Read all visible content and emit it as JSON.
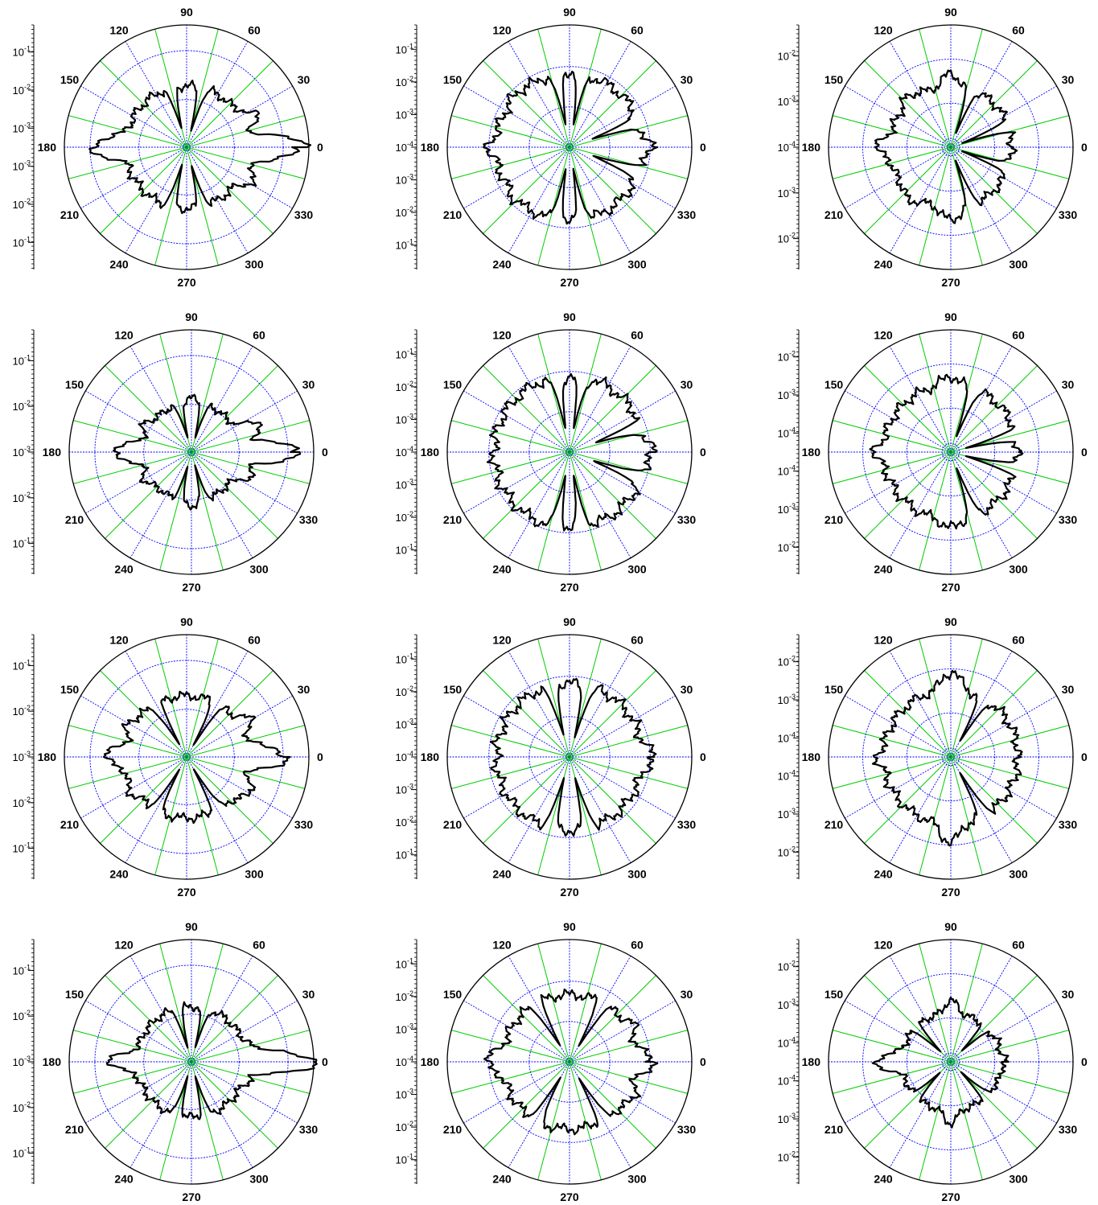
{
  "figure": {
    "angle_labels": [
      "0",
      "30",
      "60",
      "90",
      "120",
      "150",
      "180",
      "210",
      "240",
      "270",
      "300",
      "330"
    ]
  },
  "chart_data": [
    {
      "type": "polar",
      "id": "p-r1c1",
      "radial_scale": "log",
      "radial_ticks": [
        "10",
        "10",
        "10",
        "10",
        "10",
        "10",
        "10"
      ],
      "radial_exps": [
        "-1",
        "-2",
        "-3",
        "-3",
        "-2",
        "-1",
        ""
      ],
      "ring_fractions": [
        0.39,
        0.79
      ],
      "pattern": {
        "base": 0.5,
        "lobes": [
          [
            0,
            0.95
          ],
          [
            180,
            0.78
          ],
          [
            90,
            0.5
          ],
          [
            270,
            0.5
          ],
          [
            150,
            0.42
          ],
          [
            210,
            0.42
          ],
          [
            25,
            0.62
          ],
          [
            335,
            0.62
          ]
        ],
        "notches": [
          [
            75,
            0.15
          ],
          [
            105,
            0.15
          ],
          [
            255,
            0.15
          ],
          [
            285,
            0.15
          ]
        ]
      }
    },
    {
      "type": "polar",
      "id": "p-r1c2",
      "radial_scale": "log",
      "radial_ticks": [
        "10",
        "10",
        "10",
        "10",
        "10",
        "10",
        "10",
        "10",
        "10"
      ],
      "radial_exps": [
        "-1",
        "-2",
        "-3",
        "-4",
        "-3",
        "-2",
        "-1",
        "",
        ""
      ],
      "ring_fractions": [
        0.33,
        0.66
      ],
      "pattern": {
        "base": 0.6,
        "lobes": [
          [
            0,
            0.68
          ],
          [
            180,
            0.66
          ],
          [
            90,
            0.62
          ],
          [
            270,
            0.62
          ],
          [
            135,
            0.62
          ],
          [
            225,
            0.62
          ]
        ],
        "notches": [
          [
            20,
            0.2
          ],
          [
            340,
            0.2
          ],
          [
            80,
            0.18
          ],
          [
            100,
            0.18
          ],
          [
            260,
            0.18
          ],
          [
            280,
            0.18
          ]
        ]
      }
    },
    {
      "type": "polar",
      "id": "p-r1c3",
      "radial_scale": "log",
      "radial_ticks": [
        "10",
        "10",
        "10",
        "10",
        "10",
        "10",
        "10"
      ],
      "radial_exps": [
        "-2",
        "-3",
        "-4",
        "-3",
        "-2",
        "",
        ""
      ],
      "ring_fractions": [
        0.07,
        0.36,
        0.72
      ],
      "pattern": {
        "base": 0.5,
        "lobes": [
          [
            0,
            0.3
          ],
          [
            180,
            0.6
          ],
          [
            90,
            0.6
          ],
          [
            270,
            0.6
          ],
          [
            130,
            0.55
          ],
          [
            230,
            0.55
          ]
        ],
        "notches": [
          [
            20,
            0.1
          ],
          [
            340,
            0.1
          ],
          [
            70,
            0.12
          ],
          [
            290,
            0.12
          ]
        ]
      }
    },
    {
      "type": "polar",
      "id": "p-r2c1",
      "radial_scale": "log",
      "radial_ticks": [
        "10",
        "10",
        "10",
        "10",
        "10",
        "10"
      ],
      "radial_exps": [
        "-1",
        "-2",
        "-3",
        "-2",
        "-1",
        ""
      ],
      "ring_fractions": [
        0.39,
        0.79
      ],
      "pattern": {
        "base": 0.4,
        "lobes": [
          [
            0,
            0.88
          ],
          [
            180,
            0.65
          ],
          [
            90,
            0.44
          ],
          [
            270,
            0.44
          ],
          [
            20,
            0.62
          ],
          [
            340,
            0.55
          ],
          [
            150,
            0.45
          ],
          [
            210,
            0.45
          ]
        ],
        "notches": [
          [
            75,
            0.12
          ],
          [
            105,
            0.12
          ],
          [
            255,
            0.12
          ],
          [
            285,
            0.12
          ]
        ]
      }
    },
    {
      "type": "polar",
      "id": "p-r2c2",
      "radial_scale": "log",
      "radial_ticks": [
        "10",
        "10",
        "10",
        "10",
        "10",
        "10",
        "10",
        "10",
        "10"
      ],
      "radial_exps": [
        "-1",
        "-2",
        "-3",
        "-4",
        "-3",
        "-2",
        "-1",
        "",
        ""
      ],
      "ring_fractions": [
        0.33,
        0.66
      ],
      "pattern": {
        "base": 0.62,
        "lobes": [
          [
            0,
            0.68
          ],
          [
            180,
            0.62
          ],
          [
            90,
            0.62
          ],
          [
            270,
            0.62
          ]
        ],
        "notches": [
          [
            20,
            0.22
          ],
          [
            340,
            0.22
          ],
          [
            80,
            0.2
          ],
          [
            100,
            0.2
          ],
          [
            260,
            0.2
          ],
          [
            280,
            0.2
          ]
        ]
      }
    },
    {
      "type": "polar",
      "id": "p-r2c3",
      "radial_scale": "log",
      "radial_ticks": [
        "10",
        "10",
        "10",
        "10",
        "10",
        "10",
        "10",
        "10"
      ],
      "radial_exps": [
        "-2",
        "-3",
        "-4",
        "-4",
        "-3",
        "-2",
        "",
        ""
      ],
      "ring_fractions": [
        0.07,
        0.36,
        0.72
      ],
      "pattern": {
        "base": 0.55,
        "lobes": [
          [
            0,
            0.4
          ],
          [
            180,
            0.62
          ],
          [
            90,
            0.62
          ],
          [
            270,
            0.62
          ]
        ],
        "notches": [
          [
            15,
            0.12
          ],
          [
            345,
            0.12
          ],
          [
            70,
            0.15
          ],
          [
            290,
            0.15
          ]
        ]
      }
    },
    {
      "type": "polar",
      "id": "p-r3c1",
      "radial_scale": "log",
      "radial_ticks": [
        "10",
        "10",
        "10",
        "10",
        "10",
        "10"
      ],
      "radial_exps": [
        "-1",
        "-2",
        "-3",
        "-2",
        "-1",
        ""
      ],
      "ring_fractions": [
        0.39,
        0.79
      ],
      "pattern": {
        "base": 0.5,
        "lobes": [
          [
            0,
            0.82
          ],
          [
            180,
            0.66
          ],
          [
            90,
            0.46
          ],
          [
            270,
            0.46
          ],
          [
            30,
            0.6
          ],
          [
            330,
            0.6
          ],
          [
            150,
            0.55
          ],
          [
            210,
            0.55
          ]
        ],
        "notches": [
          [
            60,
            0.12
          ],
          [
            120,
            0.12
          ],
          [
            240,
            0.12
          ],
          [
            300,
            0.12
          ]
        ]
      }
    },
    {
      "type": "polar",
      "id": "p-r3c2",
      "radial_scale": "log",
      "radial_ticks": [
        "10",
        "10",
        "10",
        "10",
        "10",
        "10",
        "10",
        "10",
        "10"
      ],
      "radial_exps": [
        "-1",
        "-2",
        "-3",
        "-4",
        "-3",
        "-2",
        "-1",
        "",
        ""
      ],
      "ring_fractions": [
        0.33,
        0.66
      ],
      "pattern": {
        "base": 0.6,
        "lobes": [
          [
            0,
            0.68
          ],
          [
            180,
            0.6
          ],
          [
            90,
            0.6
          ],
          [
            270,
            0.6
          ],
          [
            45,
            0.55
          ],
          [
            315,
            0.55
          ]
        ],
        "notches": [
          [
            75,
            0.18
          ],
          [
            105,
            0.18
          ],
          [
            255,
            0.18
          ],
          [
            285,
            0.18
          ]
        ]
      }
    },
    {
      "type": "polar",
      "id": "p-r3c3",
      "radial_scale": "log",
      "radial_ticks": [
        "10",
        "10",
        "10",
        "10",
        "10",
        "10",
        "10",
        "10"
      ],
      "radial_exps": [
        "-2",
        "-3",
        "-4",
        "-4",
        "-3",
        "-2",
        "",
        ""
      ],
      "ring_fractions": [
        0.07,
        0.36,
        0.72
      ],
      "pattern": {
        "base": 0.55,
        "lobes": [
          [
            0,
            0.52
          ],
          [
            180,
            0.6
          ],
          [
            90,
            0.7
          ],
          [
            270,
            0.7
          ],
          [
            30,
            0.45
          ],
          [
            330,
            0.45
          ]
        ],
        "notches": [
          [
            60,
            0.15
          ],
          [
            300,
            0.15
          ]
        ]
      }
    },
    {
      "type": "polar",
      "id": "p-r4c1",
      "radial_scale": "log",
      "radial_ticks": [
        "10",
        "10",
        "10",
        "10",
        "10",
        "10"
      ],
      "radial_exps": [
        "-1",
        "-2",
        "-3",
        "-2",
        "-1",
        ""
      ],
      "ring_fractions": [
        0.39,
        0.79
      ],
      "pattern": {
        "base": 0.45,
        "lobes": [
          [
            0,
            1.0
          ],
          [
            180,
            0.66
          ],
          [
            90,
            0.36
          ],
          [
            270,
            0.36
          ],
          [
            15,
            0.5
          ],
          [
            345,
            0.5
          ],
          [
            150,
            0.45
          ],
          [
            210,
            0.45
          ]
        ],
        "notches": [
          [
            75,
            0.12
          ],
          [
            105,
            0.12
          ],
          [
            255,
            0.12
          ],
          [
            285,
            0.12
          ]
        ]
      }
    },
    {
      "type": "polar",
      "id": "p-r4c2",
      "radial_scale": "log",
      "radial_ticks": [
        "10",
        "10",
        "10",
        "10",
        "10",
        "10",
        "10",
        "10",
        "10"
      ],
      "radial_exps": [
        "-1",
        "-2",
        "-3",
        "-4",
        "-3",
        "-2",
        "-1",
        "",
        ""
      ],
      "ring_fractions": [
        0.33,
        0.66
      ],
      "pattern": {
        "base": 0.55,
        "lobes": [
          [
            0,
            0.68
          ],
          [
            180,
            0.68
          ],
          [
            90,
            0.52
          ],
          [
            270,
            0.52
          ],
          [
            30,
            0.6
          ],
          [
            330,
            0.6
          ]
        ],
        "notches": [
          [
            60,
            0.16
          ],
          [
            120,
            0.16
          ],
          [
            240,
            0.16
          ],
          [
            300,
            0.16
          ]
        ]
      }
    },
    {
      "type": "polar",
      "id": "p-r4c3",
      "radial_scale": "log",
      "radial_ticks": [
        "10",
        "10",
        "10",
        "10",
        "10",
        "10",
        "10",
        "10"
      ],
      "radial_exps": [
        "-2",
        "-3",
        "-4",
        "-4",
        "-3",
        "-2",
        "",
        ""
      ],
      "ring_fractions": [
        0.07,
        0.36,
        0.72
      ],
      "pattern": {
        "base": 0.4,
        "lobes": [
          [
            0,
            0.45
          ],
          [
            180,
            0.62
          ],
          [
            90,
            0.5
          ],
          [
            270,
            0.5
          ],
          [
            20,
            0.42
          ],
          [
            340,
            0.42
          ],
          [
            150,
            0.4
          ],
          [
            210,
            0.4
          ]
        ],
        "notches": [
          [
            45,
            0.12
          ],
          [
            315,
            0.12
          ],
          [
            135,
            0.12
          ],
          [
            225,
            0.12
          ]
        ]
      }
    }
  ]
}
